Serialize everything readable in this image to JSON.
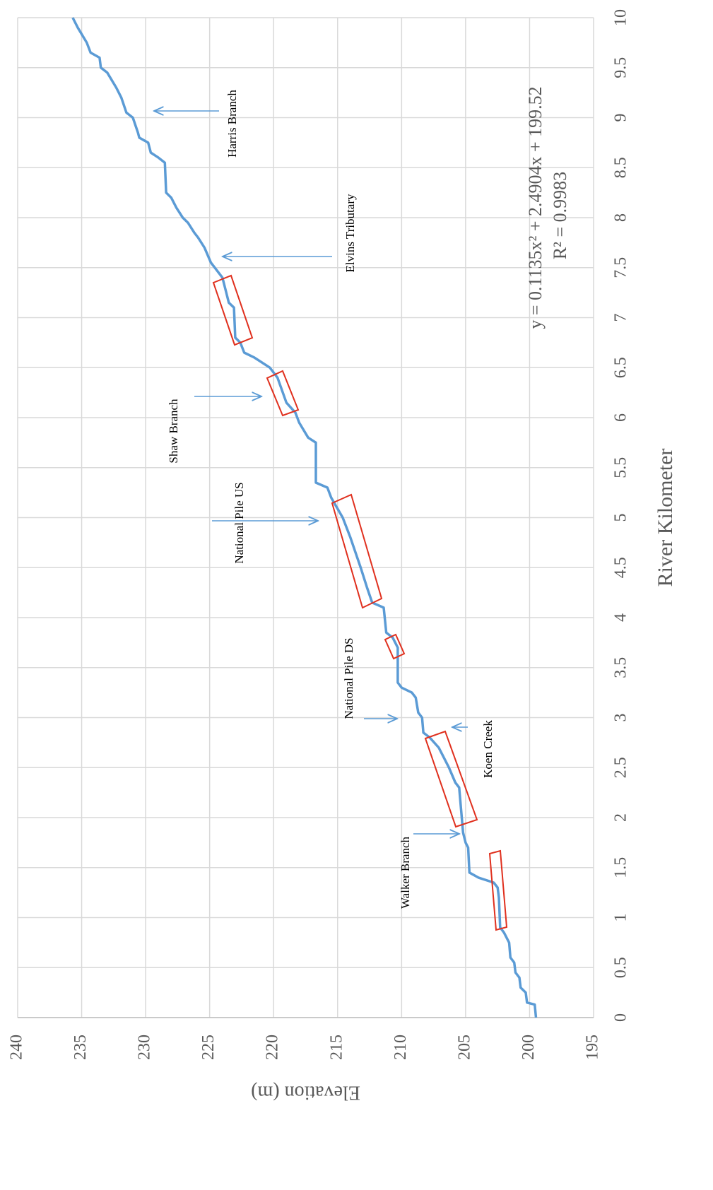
{
  "chart_data": {
    "type": "line",
    "x_label": "River Kilometer",
    "y_label": "Elevation (m)",
    "xlim": [
      0,
      10
    ],
    "xticks": [
      0,
      0.5,
      1,
      1.5,
      2,
      2.5,
      3,
      3.5,
      4,
      4.5,
      5,
      5.5,
      6,
      6.5,
      7,
      7.5,
      8,
      8.5,
      9,
      9.5,
      10
    ],
    "ylim": [
      195,
      240
    ],
    "yticks": [
      195,
      200,
      205,
      210,
      215,
      220,
      225,
      230,
      235,
      240
    ],
    "grid": true,
    "color": "#5b9bd5",
    "x": [
      0,
      0.13,
      0.15,
      0.25,
      0.3,
      0.4,
      0.45,
      0.55,
      0.6,
      0.75,
      0.85,
      0.9,
      1.2,
      1.3,
      1.35,
      1.4,
      1.45,
      1.7,
      1.75,
      1.85,
      2.3,
      2.35,
      2.5,
      2.6,
      2.7,
      2.8,
      2.85,
      3.0,
      3.05,
      3.2,
      3.25,
      3.3,
      3.35,
      3.7,
      3.8,
      3.85,
      4.1,
      4.15,
      4.3,
      4.5,
      4.8,
      5.0,
      5.2,
      5.3,
      5.35,
      5.75,
      5.8,
      5.95,
      6.05,
      6.15,
      6.4,
      6.5,
      6.6,
      6.65,
      6.75,
      6.8,
      7.1,
      7.15,
      7.3,
      7.4,
      7.5,
      7.55,
      7.7,
      7.8,
      7.85,
      7.95,
      8.0,
      8.1,
      8.2,
      8.25,
      8.55,
      8.6,
      8.65,
      8.75,
      8.8,
      8.85,
      9.0,
      9.05,
      9.2,
      9.3,
      9.45,
      9.5,
      9.6,
      9.65,
      9.75,
      9.9,
      10.0
    ],
    "values": [
      199.5,
      199.6,
      200.2,
      200.3,
      200.7,
      200.8,
      201.1,
      201.2,
      201.5,
      201.6,
      202.0,
      202.3,
      202.4,
      202.5,
      202.8,
      204.0,
      204.7,
      204.8,
      205.0,
      205.2,
      205.5,
      205.8,
      206.3,
      206.7,
      207.1,
      207.8,
      208.3,
      208.4,
      208.7,
      208.9,
      209.2,
      210.0,
      210.3,
      210.3,
      210.7,
      211.2,
      211.4,
      212.3,
      212.7,
      213.2,
      214.0,
      214.6,
      215.5,
      215.8,
      216.7,
      216.7,
      217.3,
      218.0,
      218.3,
      219.0,
      219.7,
      220.3,
      221.5,
      222.3,
      222.6,
      223.0,
      223.1,
      223.5,
      223.8,
      224.0,
      224.6,
      224.9,
      225.4,
      225.9,
      226.2,
      226.7,
      227.1,
      227.6,
      228.0,
      228.4,
      228.5,
      229.0,
      229.6,
      229.8,
      230.5,
      230.6,
      231.0,
      231.5,
      231.9,
      232.3,
      233.0,
      233.5,
      233.6,
      234.3,
      234.6,
      235.3,
      235.7
    ],
    "annotations": [
      "Harris Branch",
      "Elvins Tributary",
      "Shaw Branch",
      "National Pile US",
      "National Pile DS",
      "Koen Creek",
      "Walker Branch"
    ],
    "equation": "y = 0.1135x² + 2.4904x + 199.52",
    "r_squared": "R² = 0.9983"
  }
}
